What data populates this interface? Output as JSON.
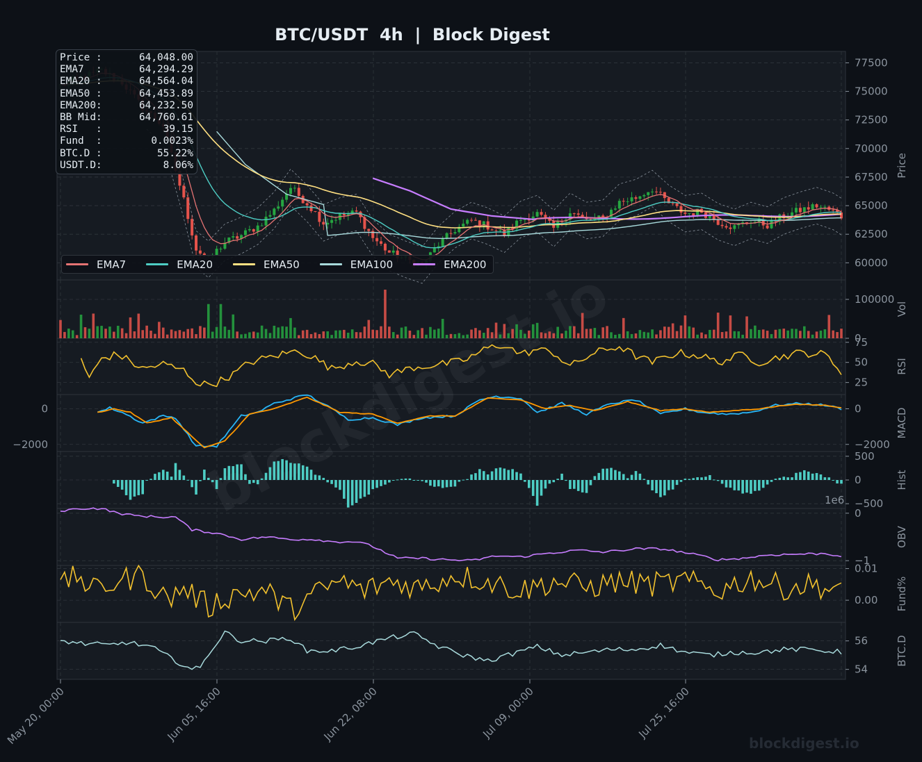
{
  "title": "BTC/USDT  4h  |  Block Digest",
  "watermark_diag": "blockdigest.io",
  "watermark": "blockdigest.io",
  "info_box": [
    {
      "label": "Price :",
      "value": "64,048.00"
    },
    {
      "label": "EMA7  :",
      "value": "64,294.29"
    },
    {
      "label": "EMA20 :",
      "value": "64,564.04"
    },
    {
      "label": "EMA50 :",
      "value": "64,453.89"
    },
    {
      "label": "EMA200:",
      "value": "64,232.50"
    },
    {
      "label": "BB Mid:",
      "value": "64,760.61"
    },
    {
      "label": "RSI   :",
      "value": "39.15"
    },
    {
      "label": "Fund  :",
      "value": "0.0023%"
    },
    {
      "label": "BTC.D :",
      "value": "55.22%"
    },
    {
      "label": "USDT.D:",
      "value": "8.06%"
    }
  ],
  "legend": [
    {
      "name": "EMA7",
      "color": "#e57373"
    },
    {
      "name": "EMA20",
      "color": "#4ecdc4"
    },
    {
      "name": "EMA50",
      "color": "#ffe082"
    },
    {
      "name": "EMA100",
      "color": "#a8dadc"
    },
    {
      "name": "EMA200",
      "color": "#c77dff"
    }
  ],
  "colors": {
    "background": "#0d1117",
    "panel": "#161b22",
    "grid": "#30363d",
    "up": "#26a641",
    "down": "#e5534b",
    "rsi": "#f2c12e",
    "macd": "#29b6f6",
    "signal": "#ff9800",
    "hist": "#4ecdc4",
    "obv": "#c77dff",
    "funding": "#f2c12e",
    "btcd": "#a8dadc"
  },
  "chart_data": {
    "type": "line",
    "x_ticks": [
      "May 20, 00:00",
      "Jun 05, 16:00",
      "Jun 22, 08:00",
      "Jul 09, 00:00",
      "Jul 25, 16:00"
    ],
    "x_range": [
      "May 20, 00:00",
      "Aug 10, 00:00"
    ],
    "price": {
      "ylabel": "Price",
      "ylim": [
        58500,
        78500
      ],
      "ticks": [
        "60000",
        "62500",
        "65000",
        "67500",
        "70000",
        "72500",
        "75000",
        "77500"
      ],
      "close_path": [
        [
          0,
          75500
        ],
        [
          5,
          76200
        ],
        [
          10,
          76800
        ],
        [
          15,
          75800
        ],
        [
          20,
          73600
        ],
        [
          25,
          72000
        ],
        [
          30,
          65500
        ],
        [
          33,
          61200
        ],
        [
          36,
          60300
        ],
        [
          40,
          61800
        ],
        [
          44,
          62400
        ],
        [
          48,
          63200
        ],
        [
          52,
          64600
        ],
        [
          56,
          66600
        ],
        [
          60,
          65200
        ],
        [
          64,
          63500
        ],
        [
          68,
          64100
        ],
        [
          72,
          64400
        ],
        [
          76,
          62200
        ],
        [
          80,
          60900
        ],
        [
          84,
          60300
        ],
        [
          88,
          59800
        ],
        [
          92,
          61600
        ],
        [
          96,
          62900
        ],
        [
          100,
          63700
        ],
        [
          104,
          63200
        ],
        [
          108,
          62500
        ],
        [
          112,
          63800
        ],
        [
          116,
          64300
        ],
        [
          120,
          63000
        ],
        [
          124,
          64500
        ],
        [
          128,
          63700
        ],
        [
          132,
          63900
        ],
        [
          136,
          65300
        ],
        [
          140,
          65700
        ],
        [
          144,
          66500
        ],
        [
          148,
          65200
        ],
        [
          152,
          64300
        ],
        [
          156,
          64500
        ],
        [
          160,
          63600
        ],
        [
          164,
          63100
        ],
        [
          168,
          63700
        ],
        [
          172,
          63300
        ],
        [
          176,
          64100
        ],
        [
          180,
          64600
        ],
        [
          184,
          65000
        ],
        [
          188,
          64500
        ],
        [
          190,
          64048
        ]
      ],
      "ema7_start": [
        [
          0,
          75300
        ],
        [
          10,
          76400
        ],
        [
          20,
          73900
        ],
        [
          30,
          66200
        ]
      ],
      "ema100_start": [
        [
          38,
          71500
        ],
        [
          45,
          68600
        ],
        [
          55,
          66000
        ],
        [
          65,
          65000
        ]
      ],
      "ema200_start": [
        [
          76,
          67400
        ],
        [
          85,
          66300
        ],
        [
          95,
          64700
        ],
        [
          105,
          64100
        ],
        [
          115,
          63800
        ]
      ],
      "last": {
        "ema7": 64294.29,
        "ema20": 64564.04,
        "ema50": 64453.89,
        "ema200": 64232.5
      }
    },
    "volume": {
      "ylabel": "Vol",
      "ylim": [
        0,
        150000
      ],
      "ticks": [
        "0",
        "100000"
      ],
      "max_spike": 125000
    },
    "rsi": {
      "ylabel": "RSI",
      "ylim": [
        10,
        80
      ],
      "ticks": [
        "25",
        "50",
        "75"
      ],
      "path": [
        [
          5,
          55
        ],
        [
          7,
          30
        ],
        [
          10,
          55
        ],
        [
          14,
          60
        ],
        [
          20,
          42
        ],
        [
          25,
          48
        ],
        [
          30,
          40
        ],
        [
          34,
          22
        ],
        [
          38,
          25
        ],
        [
          42,
          35
        ],
        [
          46,
          50
        ],
        [
          52,
          58
        ],
        [
          58,
          65
        ],
        [
          62,
          55
        ],
        [
          66,
          42
        ],
        [
          72,
          52
        ],
        [
          76,
          48
        ],
        [
          80,
          35
        ],
        [
          86,
          44
        ],
        [
          92,
          47
        ],
        [
          98,
          52
        ],
        [
          104,
          68
        ],
        [
          108,
          72
        ],
        [
          112,
          60
        ],
        [
          116,
          66
        ],
        [
          120,
          62
        ],
        [
          124,
          45
        ],
        [
          130,
          62
        ],
        [
          136,
          70
        ],
        [
          140,
          58
        ],
        [
          144,
          50
        ],
        [
          150,
          62
        ],
        [
          156,
          58
        ],
        [
          160,
          50
        ],
        [
          166,
          60
        ],
        [
          170,
          50
        ],
        [
          176,
          58
        ],
        [
          180,
          62
        ],
        [
          186,
          60
        ],
        [
          190,
          39.15
        ]
      ]
    },
    "macd": {
      "ylabel": "MACD",
      "ylim": [
        -2400,
        800
      ],
      "ticks": [
        "0",
        "−2000"
      ],
      "macd_path": [
        [
          9,
          -200
        ],
        [
          12,
          50
        ],
        [
          15,
          -200
        ],
        [
          20,
          -800
        ],
        [
          25,
          -400
        ],
        [
          28,
          -500
        ],
        [
          33,
          -2100
        ],
        [
          38,
          -2100
        ],
        [
          44,
          -400
        ],
        [
          48,
          -200
        ],
        [
          52,
          300
        ],
        [
          60,
          800
        ],
        [
          66,
          0
        ],
        [
          70,
          -600
        ],
        [
          76,
          -500
        ],
        [
          82,
          -900
        ],
        [
          88,
          -500
        ],
        [
          96,
          -400
        ],
        [
          102,
          500
        ],
        [
          106,
          700
        ],
        [
          112,
          600
        ],
        [
          116,
          -200
        ],
        [
          122,
          300
        ],
        [
          128,
          -300
        ],
        [
          134,
          300
        ],
        [
          140,
          500
        ],
        [
          146,
          -300
        ],
        [
          152,
          0
        ],
        [
          156,
          -200
        ],
        [
          162,
          -300
        ],
        [
          168,
          -200
        ],
        [
          174,
          200
        ],
        [
          180,
          300
        ],
        [
          186,
          200
        ],
        [
          190,
          0
        ]
      ],
      "signal_path": [
        [
          9,
          -200
        ],
        [
          13,
          0
        ],
        [
          17,
          -200
        ],
        [
          21,
          -800
        ],
        [
          27,
          -500
        ],
        [
          35,
          -2200
        ],
        [
          40,
          -1800
        ],
        [
          46,
          -300
        ],
        [
          52,
          0
        ],
        [
          60,
          650
        ],
        [
          68,
          -200
        ],
        [
          76,
          -300
        ],
        [
          82,
          -800
        ],
        [
          90,
          -400
        ],
        [
          96,
          -400
        ],
        [
          104,
          600
        ],
        [
          112,
          500
        ],
        [
          118,
          0
        ],
        [
          124,
          200
        ],
        [
          130,
          -100
        ],
        [
          138,
          400
        ],
        [
          146,
          -100
        ],
        [
          152,
          0
        ],
        [
          158,
          -200
        ],
        [
          164,
          -100
        ],
        [
          170,
          0
        ],
        [
          178,
          250
        ],
        [
          186,
          200
        ],
        [
          190,
          50
        ]
      ]
    },
    "hist": {
      "ylabel": "Hist",
      "ylim": [
        -600,
        600
      ],
      "ticks": [
        "500",
        "0",
        "−500"
      ]
    },
    "obv": {
      "ylabel": "OBV",
      "exponent": "1e6",
      "ylim": [
        -1.1,
        0.1
      ],
      "ticks": [
        "0",
        "−1"
      ],
      "path": [
        [
          0,
          0.05
        ],
        [
          5,
          0.1
        ],
        [
          10,
          0.1
        ],
        [
          14,
          0.0
        ],
        [
          18,
          -0.05
        ],
        [
          24,
          -0.08
        ],
        [
          28,
          -0.08
        ],
        [
          32,
          -0.35
        ],
        [
          38,
          -0.42
        ],
        [
          44,
          -0.55
        ],
        [
          50,
          -0.5
        ],
        [
          56,
          -0.55
        ],
        [
          62,
          -0.55
        ],
        [
          66,
          -0.6
        ],
        [
          72,
          -0.6
        ],
        [
          76,
          -0.7
        ],
        [
          82,
          -0.95
        ],
        [
          88,
          -0.95
        ],
        [
          94,
          -0.98
        ],
        [
          100,
          -1.0
        ],
        [
          106,
          -0.9
        ],
        [
          112,
          -0.92
        ],
        [
          118,
          -0.85
        ],
        [
          126,
          -0.78
        ],
        [
          132,
          -0.82
        ],
        [
          140,
          -0.75
        ],
        [
          146,
          -0.75
        ],
        [
          150,
          -0.8
        ],
        [
          156,
          -0.9
        ],
        [
          160,
          -0.98
        ],
        [
          166,
          -0.95
        ],
        [
          172,
          -0.88
        ],
        [
          180,
          -0.86
        ],
        [
          186,
          -0.85
        ],
        [
          190,
          -0.9
        ]
      ]
    },
    "funding": {
      "ylabel": "Fund%",
      "ylim": [
        -0.007,
        0.011
      ],
      "ticks": [
        "0.01",
        "0.00"
      ],
      "path": [
        [
          0,
          0.004
        ],
        [
          4,
          0.008
        ],
        [
          8,
          0.003
        ],
        [
          14,
          0.006
        ],
        [
          20,
          0.008
        ],
        [
          26,
          0.0
        ],
        [
          30,
          0.004
        ],
        [
          36,
          -0.002
        ],
        [
          42,
          0.002
        ],
        [
          50,
          0.003
        ],
        [
          56,
          -0.003
        ],
        [
          62,
          0.002
        ],
        [
          68,
          0.006
        ],
        [
          74,
          0.003
        ],
        [
          80,
          0.006
        ],
        [
          88,
          0.004
        ],
        [
          96,
          0.008
        ],
        [
          104,
          0.006
        ],
        [
          112,
          0.003
        ],
        [
          120,
          0.006
        ],
        [
          128,
          0.004
        ],
        [
          136,
          0.006
        ],
        [
          144,
          0.005
        ],
        [
          152,
          0.006
        ],
        [
          160,
          0.003
        ],
        [
          168,
          0.007
        ],
        [
          176,
          0.004
        ],
        [
          184,
          0.005
        ],
        [
          190,
          0.002
        ]
      ]
    },
    "btcd": {
      "ylabel": "BTC.D",
      "ylim": [
        53.3,
        57.3
      ],
      "ticks": [
        "56",
        "54"
      ],
      "path": [
        [
          0,
          56.0
        ],
        [
          6,
          55.8
        ],
        [
          12,
          55.7
        ],
        [
          16,
          55.9
        ],
        [
          22,
          55.6
        ],
        [
          28,
          54.6
        ],
        [
          32,
          54.0
        ],
        [
          34,
          54.1
        ],
        [
          36,
          55.1
        ],
        [
          40,
          56.6
        ],
        [
          44,
          56.0
        ],
        [
          50,
          56.0
        ],
        [
          56,
          56.2
        ],
        [
          60,
          55.3
        ],
        [
          66,
          55.3
        ],
        [
          72,
          55.6
        ],
        [
          80,
          56.2
        ],
        [
          86,
          56.5
        ],
        [
          92,
          55.6
        ],
        [
          98,
          55.0
        ],
        [
          104,
          54.6
        ],
        [
          110,
          55.1
        ],
        [
          116,
          55.6
        ],
        [
          122,
          55.0
        ],
        [
          128,
          55.2
        ],
        [
          134,
          55.4
        ],
        [
          140,
          55.4
        ],
        [
          146,
          55.7
        ],
        [
          152,
          55.2
        ],
        [
          158,
          55.0
        ],
        [
          164,
          55.2
        ],
        [
          170,
          55.2
        ],
        [
          176,
          55.4
        ],
        [
          182,
          55.4
        ],
        [
          190,
          55.22
        ]
      ]
    }
  }
}
